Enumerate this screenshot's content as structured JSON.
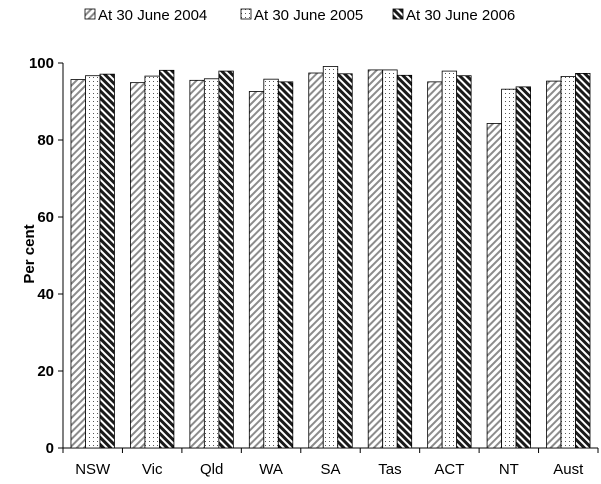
{
  "chart_data": {
    "type": "bar",
    "title": "",
    "xlabel": "",
    "ylabel": "Per cent",
    "ylim": [
      0,
      100
    ],
    "yticks": [
      0,
      20,
      40,
      60,
      80,
      100
    ],
    "grid": false,
    "legend_position": "top",
    "categories": [
      "NSW",
      "Vic",
      "Qld",
      "WA",
      "SA",
      "Tas",
      "ACT",
      "NT",
      "Aust"
    ],
    "series": [
      {
        "name": "At 30 June 2004",
        "pattern": "light-diagonal",
        "values": [
          95.7,
          94.9,
          95.5,
          92.6,
          97.4,
          98.2,
          95.1,
          84.3,
          95.3
        ]
      },
      {
        "name": "At 30 June 2005",
        "pattern": "dotted",
        "values": [
          96.7,
          96.6,
          95.9,
          95.8,
          99.1,
          98.2,
          97.9,
          93.2,
          96.5
        ]
      },
      {
        "name": "At 30 June 2006",
        "pattern": "dark-diagonal",
        "values": [
          97.1,
          98.1,
          97.9,
          95.1,
          97.2,
          96.8,
          96.7,
          93.8,
          97.3
        ]
      }
    ]
  }
}
